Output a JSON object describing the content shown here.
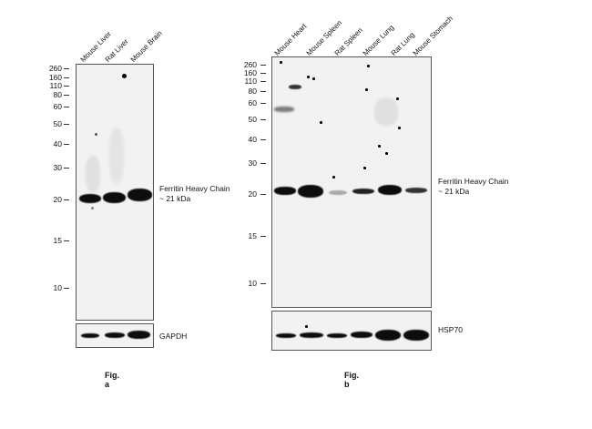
{
  "fig_a": {
    "caption": "Fig. a",
    "lanes": [
      "Mouse Liver",
      "Rat Liver",
      "Mouse Brain"
    ],
    "mw_markers": [
      "260",
      "160",
      "110",
      "80",
      "60",
      "50",
      "40",
      "30",
      "20",
      "15",
      "10"
    ],
    "target_label_line1": "Ferritin Heavy Chain",
    "target_label_line2": "~ 21 kDa",
    "loading_control": "GAPDH"
  },
  "fig_b": {
    "caption": "Fig. b",
    "lanes": [
      "Mouse Heart",
      "Mouse Spleen",
      "Rat Spleen",
      "Mouse Lung",
      "Rat Lung",
      "Mouse Stomach"
    ],
    "mw_markers": [
      "260",
      "160",
      "110",
      "80",
      "60",
      "50",
      "40",
      "30",
      "20",
      "15",
      "10"
    ],
    "target_label_line1": "Ferritin Heavy Chain",
    "target_label_line2": "~ 21 kDa",
    "loading_control": "HSP70"
  }
}
